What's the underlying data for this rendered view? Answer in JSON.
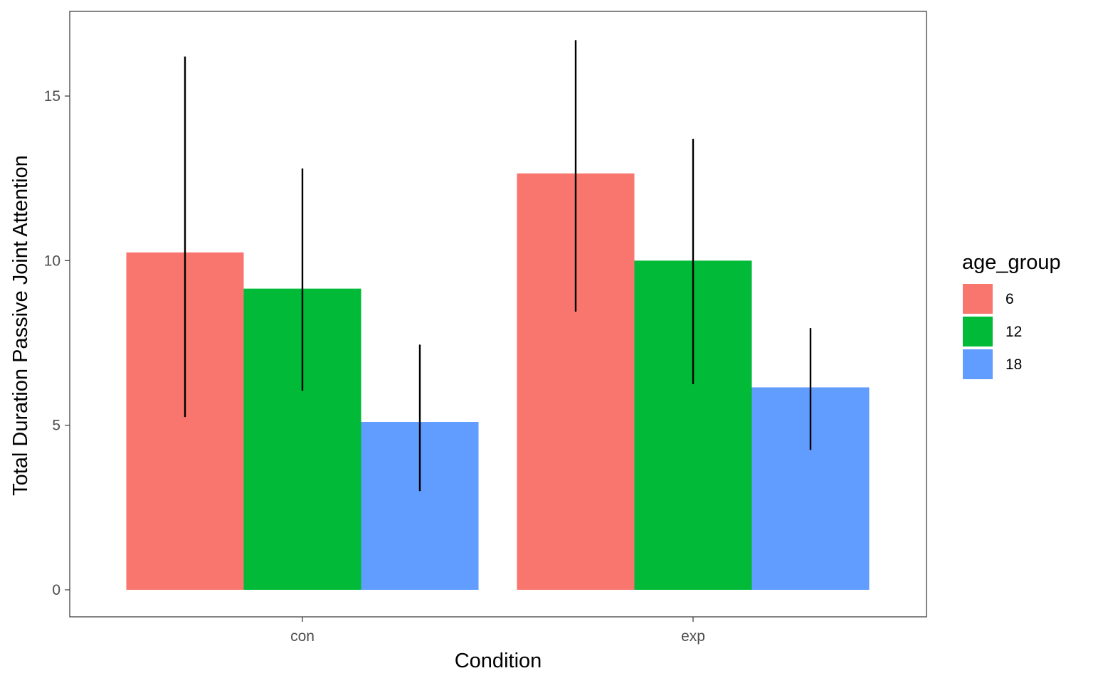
{
  "chart_data": {
    "type": "bar",
    "title": "",
    "xlabel": "Condition",
    "ylabel": "Total Duration Passive Joint Attention",
    "categories": [
      "con",
      "exp"
    ],
    "ylim": [
      -0.8,
      17.5
    ],
    "yticks": [
      "0",
      "5",
      "10",
      "15"
    ],
    "grid": false,
    "legend": {
      "title": "age_group",
      "placement": "right"
    },
    "series": [
      {
        "name": "6",
        "color": "#F8766D",
        "values": [
          10.25,
          12.65
        ],
        "err_low": [
          5.25,
          8.45
        ],
        "err_high": [
          16.2,
          16.7
        ]
      },
      {
        "name": "12",
        "color": "#00BA38",
        "values": [
          9.15,
          10.0
        ],
        "err_low": [
          6.05,
          6.25
        ],
        "err_high": [
          12.8,
          13.7
        ]
      },
      {
        "name": "18",
        "color": "#619CFF",
        "values": [
          5.1,
          6.15
        ],
        "err_low": [
          3.0,
          4.25
        ],
        "err_high": [
          7.45,
          7.95
        ]
      }
    ]
  }
}
